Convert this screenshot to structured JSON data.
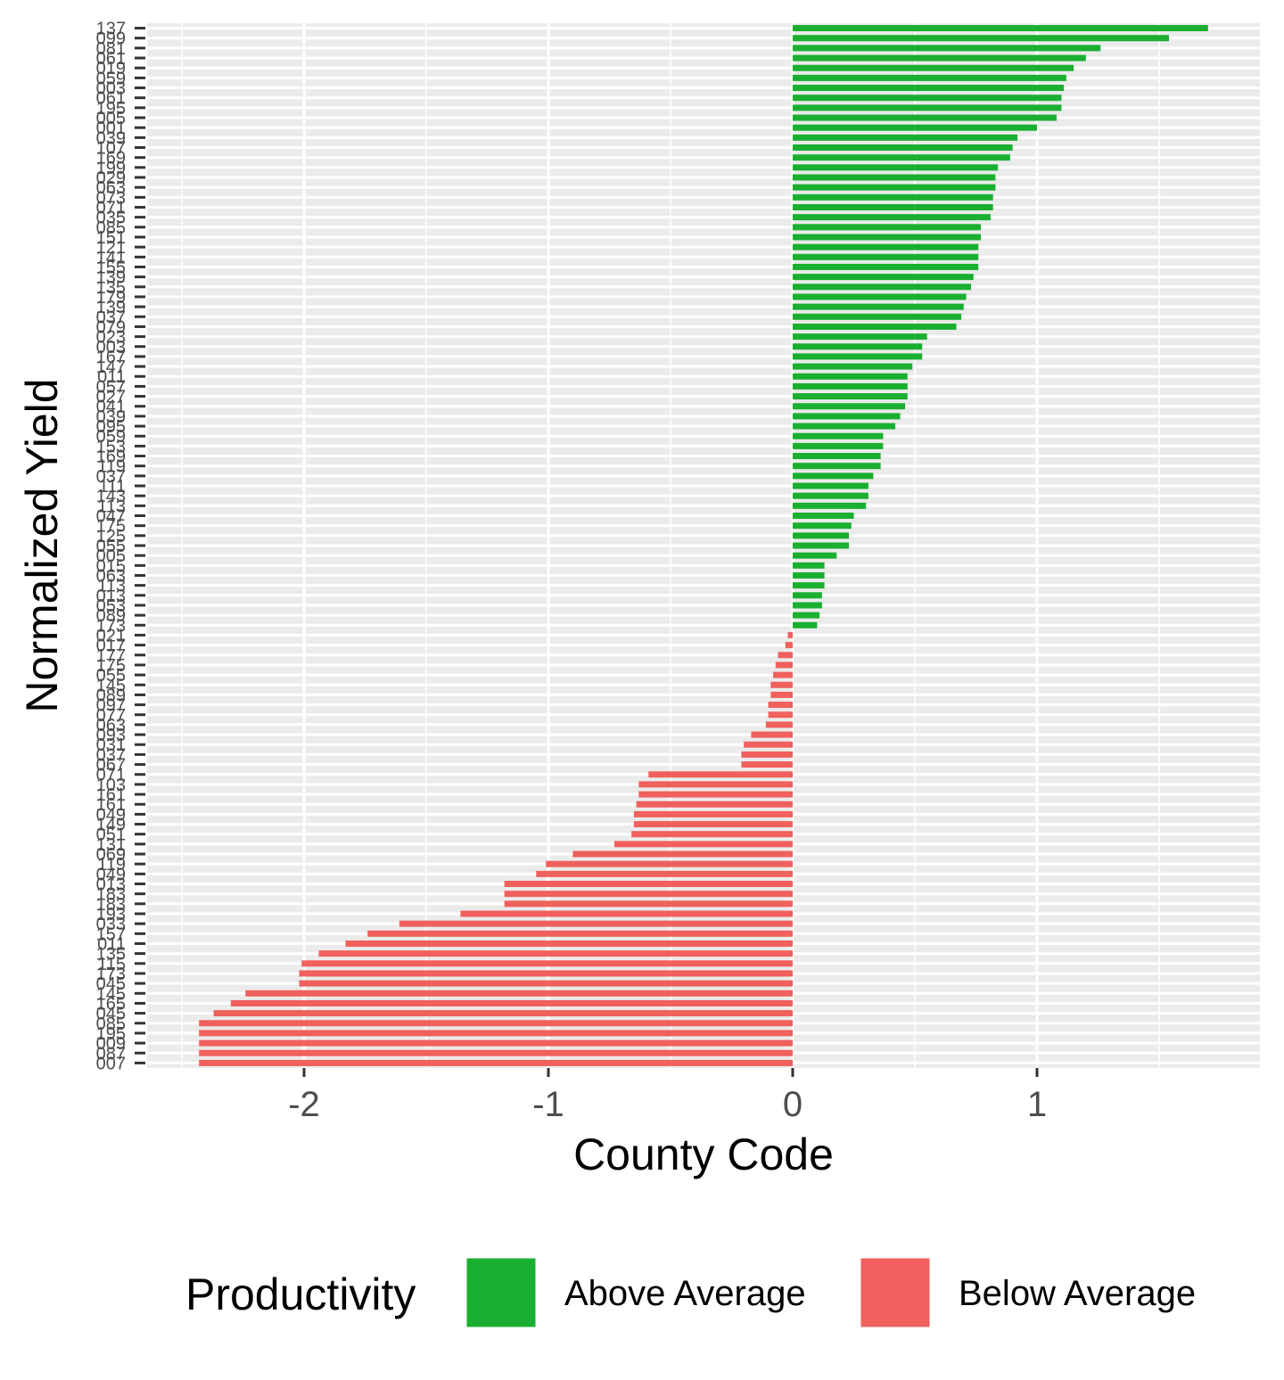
{
  "chart_data": {
    "type": "bar",
    "orientation": "horizontal",
    "xlabel": "County Code",
    "ylabel": "Normalized Yield",
    "xlim": [
      -2.5,
      1.8
    ],
    "x_ticks": [
      -2,
      -1,
      0,
      1
    ],
    "x_tick_labels": [
      "-2",
      "-1",
      "0",
      "1"
    ],
    "grid": true,
    "legend": {
      "title": "Productivity",
      "position": "bottom",
      "items": [
        {
          "label": "Above Average",
          "color": "#1AAF30"
        },
        {
          "label": "Below Average",
          "color": "#F0605D"
        }
      ]
    },
    "categories": [
      "137",
      "099",
      "081",
      "061",
      "019",
      "059",
      "003",
      "061",
      "195",
      "005",
      "001",
      "039",
      "107",
      "169",
      "199",
      "029",
      "063",
      "073",
      "071",
      "035",
      "085",
      "151",
      "121",
      "141",
      "155",
      "139",
      "135",
      "179",
      "139",
      "037",
      "079",
      "023",
      "003",
      "167",
      "147",
      "011",
      "057",
      "027",
      "041",
      "039",
      "095",
      "059",
      "153",
      "169",
      "119",
      "037",
      "111",
      "143",
      "113",
      "047",
      "175",
      "125",
      "055",
      "005",
      "015",
      "063",
      "113",
      "013",
      "053",
      "089",
      "173",
      "021",
      "017",
      "177",
      "175",
      "055",
      "145",
      "089",
      "097",
      "077",
      "063",
      "093",
      "031",
      "037",
      "067",
      "071",
      "103",
      "161",
      "161",
      "049",
      "149",
      "051",
      "131",
      "069",
      "119",
      "049",
      "013",
      "183",
      "183",
      "193",
      "033",
      "157",
      "011",
      "135",
      "115",
      "173",
      "045",
      "145",
      "165",
      "045",
      "085",
      "195",
      "009",
      "087",
      "007"
    ],
    "values": [
      1.7,
      1.54,
      1.26,
      1.2,
      1.15,
      1.12,
      1.11,
      1.1,
      1.1,
      1.08,
      1.0,
      0.92,
      0.9,
      0.89,
      0.84,
      0.83,
      0.83,
      0.82,
      0.82,
      0.81,
      0.77,
      0.77,
      0.76,
      0.76,
      0.76,
      0.74,
      0.73,
      0.71,
      0.7,
      0.69,
      0.67,
      0.55,
      0.53,
      0.53,
      0.49,
      0.47,
      0.47,
      0.47,
      0.46,
      0.44,
      0.42,
      0.37,
      0.37,
      0.36,
      0.36,
      0.33,
      0.31,
      0.31,
      0.3,
      0.25,
      0.24,
      0.23,
      0.23,
      0.18,
      0.13,
      0.13,
      0.13,
      0.12,
      0.12,
      0.11,
      0.1,
      -0.02,
      -0.03,
      -0.06,
      -0.07,
      -0.08,
      -0.09,
      -0.09,
      -0.1,
      -0.1,
      -0.11,
      -0.17,
      -0.2,
      -0.21,
      -0.21,
      -0.59,
      -0.63,
      -0.63,
      -0.64,
      -0.65,
      -0.65,
      -0.66,
      -0.73,
      -0.9,
      -1.01,
      -1.05,
      -1.18,
      -1.18,
      -1.18,
      -1.36,
      -1.61,
      -1.74,
      -1.83,
      -1.94,
      -2.01,
      -2.02,
      -2.02,
      -2.24,
      -2.3,
      -2.37,
      -2.43,
      -2.43,
      -2.43,
      -2.43,
      -2.43
    ],
    "series": [
      {
        "name": "Above Average",
        "color": "#1AAF30"
      },
      {
        "name": "Below Average",
        "color": "#F0605D"
      }
    ]
  }
}
